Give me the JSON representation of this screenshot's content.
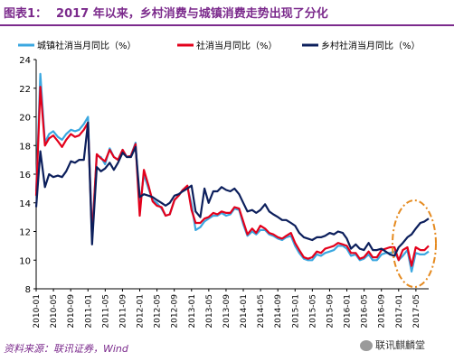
{
  "figure": {
    "label": "图表1：",
    "title": "2017 年以来，乡村消费与城镇消费走势出现了分化",
    "source": "资料来源：联讯证券，Wind",
    "watermark": "联讯麒麟堂"
  },
  "colors": {
    "urban": "#3aa7e0",
    "total": "#e3001b",
    "rural": "#0c1f5c",
    "annotation": "#e58a1f",
    "title": "#7b2a8c"
  },
  "chart_data": {
    "type": "line",
    "x_tick_labels": [
      "2010-01",
      "2010-05",
      "2010-09",
      "2011-01",
      "2011-05",
      "2011-09",
      "2012-01",
      "2012-05",
      "2012-09",
      "2013-01",
      "2013-05",
      "2013-09",
      "2014-01",
      "2014-05",
      "2014-09",
      "2015-01",
      "2015-05",
      "2015-09",
      "2016-01",
      "2016-05",
      "2016-09",
      "2017-01",
      "2017-05"
    ],
    "ylim": [
      8,
      24
    ],
    "yticks": [
      8,
      10,
      12,
      14,
      16,
      18,
      20,
      22,
      24
    ],
    "legend_position": "top",
    "series": [
      {
        "name": "城镇社消当月同比（%）",
        "color_key": "urban",
        "values": [
          [
            2010.0,
            14.8
          ],
          [
            2010.08,
            23.0
          ],
          [
            2010.17,
            18.2
          ],
          [
            2010.25,
            18.8
          ],
          [
            2010.33,
            19.0
          ],
          [
            2010.42,
            18.6
          ],
          [
            2010.5,
            18.4
          ],
          [
            2010.58,
            18.8
          ],
          [
            2010.67,
            19.1
          ],
          [
            2010.75,
            19.0
          ],
          [
            2010.83,
            19.1
          ],
          [
            2010.92,
            19.5
          ],
          [
            2011.0,
            20.0
          ],
          [
            2011.08,
            11.8
          ],
          [
            2011.17,
            17.3
          ],
          [
            2011.25,
            17.2
          ],
          [
            2011.33,
            16.7
          ],
          [
            2011.42,
            17.8
          ],
          [
            2011.5,
            17.2
          ],
          [
            2011.58,
            17.0
          ],
          [
            2011.67,
            17.7
          ],
          [
            2011.75,
            17.2
          ],
          [
            2011.83,
            17.3
          ],
          [
            2011.92,
            18.2
          ],
          [
            2012.0,
            13.6
          ],
          [
            2012.08,
            16.0
          ],
          [
            2012.17,
            15.0
          ],
          [
            2012.25,
            14.2
          ],
          [
            2012.33,
            14.0
          ],
          [
            2012.42,
            13.6
          ],
          [
            2012.5,
            13.1
          ],
          [
            2012.58,
            13.2
          ],
          [
            2012.67,
            14.2
          ],
          [
            2012.75,
            14.5
          ],
          [
            2012.83,
            14.9
          ],
          [
            2012.92,
            15.1
          ],
          [
            2013.0,
            13.9
          ],
          [
            2013.08,
            12.1
          ],
          [
            2013.17,
            12.3
          ],
          [
            2013.25,
            12.7
          ],
          [
            2013.33,
            12.9
          ],
          [
            2013.42,
            13.1
          ],
          [
            2013.5,
            13.1
          ],
          [
            2013.58,
            13.3
          ],
          [
            2013.67,
            13.1
          ],
          [
            2013.75,
            13.2
          ],
          [
            2013.83,
            13.6
          ],
          [
            2013.92,
            13.5
          ],
          [
            2014.0,
            12.5
          ],
          [
            2014.08,
            11.7
          ],
          [
            2014.17,
            12.0
          ],
          [
            2014.25,
            11.8
          ],
          [
            2014.33,
            12.1
          ],
          [
            2014.42,
            12.1
          ],
          [
            2014.5,
            11.8
          ],
          [
            2014.58,
            11.7
          ],
          [
            2014.67,
            11.5
          ],
          [
            2014.75,
            11.4
          ],
          [
            2014.83,
            11.6
          ],
          [
            2014.92,
            11.7
          ],
          [
            2015.0,
            11.0
          ],
          [
            2015.08,
            10.5
          ],
          [
            2015.17,
            10.1
          ],
          [
            2015.25,
            10.0
          ],
          [
            2015.33,
            10.0
          ],
          [
            2015.42,
            10.4
          ],
          [
            2015.5,
            10.3
          ],
          [
            2015.58,
            10.5
          ],
          [
            2015.67,
            10.6
          ],
          [
            2015.75,
            10.7
          ],
          [
            2015.83,
            11.0
          ],
          [
            2015.92,
            11.0
          ],
          [
            2016.0,
            10.8
          ],
          [
            2016.08,
            10.3
          ],
          [
            2016.17,
            10.4
          ],
          [
            2016.25,
            10.0
          ],
          [
            2016.33,
            10.1
          ],
          [
            2016.42,
            10.4
          ],
          [
            2016.5,
            10.0
          ],
          [
            2016.58,
            10.0
          ],
          [
            2016.67,
            10.4
          ],
          [
            2016.75,
            10.5
          ],
          [
            2016.83,
            10.5
          ],
          [
            2016.92,
            10.6
          ],
          [
            2017.0,
            10.0
          ],
          [
            2017.08,
            10.3
          ],
          [
            2017.17,
            10.7
          ],
          [
            2017.25,
            9.2
          ],
          [
            2017.33,
            10.5
          ],
          [
            2017.42,
            10.4
          ],
          [
            2017.5,
            10.4
          ],
          [
            2017.58,
            10.6
          ]
        ]
      },
      {
        "name": "社消当月同比（%）",
        "color_key": "total",
        "values": [
          [
            2010.0,
            14.5
          ],
          [
            2010.08,
            22.1
          ],
          [
            2010.17,
            18.0
          ],
          [
            2010.25,
            18.5
          ],
          [
            2010.33,
            18.7
          ],
          [
            2010.42,
            18.3
          ],
          [
            2010.5,
            17.9
          ],
          [
            2010.58,
            18.4
          ],
          [
            2010.67,
            18.8
          ],
          [
            2010.75,
            18.6
          ],
          [
            2010.83,
            18.7
          ],
          [
            2010.92,
            19.1
          ],
          [
            2011.0,
            19.6
          ],
          [
            2011.08,
            11.6
          ],
          [
            2011.17,
            17.4
          ],
          [
            2011.25,
            17.1
          ],
          [
            2011.33,
            16.9
          ],
          [
            2011.42,
            17.7
          ],
          [
            2011.5,
            17.2
          ],
          [
            2011.58,
            17.0
          ],
          [
            2011.67,
            17.7
          ],
          [
            2011.75,
            17.2
          ],
          [
            2011.83,
            17.3
          ],
          [
            2011.92,
            18.1
          ],
          [
            2012.0,
            13.1
          ],
          [
            2012.08,
            16.3
          ],
          [
            2012.17,
            15.2
          ],
          [
            2012.25,
            14.1
          ],
          [
            2012.33,
            13.8
          ],
          [
            2012.42,
            13.7
          ],
          [
            2012.5,
            13.1
          ],
          [
            2012.58,
            13.2
          ],
          [
            2012.67,
            14.2
          ],
          [
            2012.75,
            14.5
          ],
          [
            2012.83,
            14.9
          ],
          [
            2012.92,
            15.2
          ],
          [
            2013.0,
            13.5
          ],
          [
            2013.08,
            12.6
          ],
          [
            2013.17,
            12.6
          ],
          [
            2013.25,
            12.9
          ],
          [
            2013.33,
            13.0
          ],
          [
            2013.42,
            13.3
          ],
          [
            2013.5,
            13.2
          ],
          [
            2013.58,
            13.4
          ],
          [
            2013.67,
            13.3
          ],
          [
            2013.75,
            13.3
          ],
          [
            2013.83,
            13.7
          ],
          [
            2013.92,
            13.6
          ],
          [
            2014.0,
            12.7
          ],
          [
            2014.08,
            11.8
          ],
          [
            2014.17,
            12.2
          ],
          [
            2014.25,
            11.9
          ],
          [
            2014.33,
            12.4
          ],
          [
            2014.42,
            12.2
          ],
          [
            2014.5,
            11.9
          ],
          [
            2014.58,
            11.8
          ],
          [
            2014.67,
            11.6
          ],
          [
            2014.75,
            11.5
          ],
          [
            2014.83,
            11.7
          ],
          [
            2014.92,
            11.9
          ],
          [
            2015.0,
            11.2
          ],
          [
            2015.08,
            10.7
          ],
          [
            2015.17,
            10.2
          ],
          [
            2015.25,
            10.1
          ],
          [
            2015.33,
            10.2
          ],
          [
            2015.42,
            10.6
          ],
          [
            2015.5,
            10.5
          ],
          [
            2015.58,
            10.8
          ],
          [
            2015.67,
            10.9
          ],
          [
            2015.75,
            11.0
          ],
          [
            2015.83,
            11.2
          ],
          [
            2015.92,
            11.1
          ],
          [
            2016.0,
            11.0
          ],
          [
            2016.08,
            10.5
          ],
          [
            2016.17,
            10.5
          ],
          [
            2016.25,
            10.1
          ],
          [
            2016.33,
            10.2
          ],
          [
            2016.42,
            10.6
          ],
          [
            2016.5,
            10.2
          ],
          [
            2016.58,
            10.2
          ],
          [
            2016.67,
            10.7
          ],
          [
            2016.75,
            10.8
          ],
          [
            2016.83,
            10.9
          ],
          [
            2016.92,
            10.9
          ],
          [
            2017.0,
            10.0
          ],
          [
            2017.08,
            10.7
          ],
          [
            2017.17,
            10.9
          ],
          [
            2017.25,
            9.6
          ],
          [
            2017.33,
            10.9
          ],
          [
            2017.42,
            10.7
          ],
          [
            2017.5,
            10.7
          ],
          [
            2017.58,
            11.0
          ]
        ]
      },
      {
        "name": "乡村社消当月同比（%）",
        "color_key": "rural",
        "values": [
          [
            2010.0,
            13.7
          ],
          [
            2010.08,
            17.6
          ],
          [
            2010.17,
            15.1
          ],
          [
            2010.25,
            16.0
          ],
          [
            2010.33,
            15.8
          ],
          [
            2010.42,
            15.9
          ],
          [
            2010.5,
            15.8
          ],
          [
            2010.58,
            16.2
          ],
          [
            2010.67,
            16.9
          ],
          [
            2010.75,
            16.8
          ],
          [
            2010.83,
            17.0
          ],
          [
            2010.92,
            17.0
          ],
          [
            2011.0,
            19.6
          ],
          [
            2011.08,
            11.1
          ],
          [
            2011.17,
            16.5
          ],
          [
            2011.25,
            16.2
          ],
          [
            2011.33,
            16.4
          ],
          [
            2011.42,
            16.8
          ],
          [
            2011.5,
            16.3
          ],
          [
            2011.58,
            16.8
          ],
          [
            2011.67,
            17.5
          ],
          [
            2011.75,
            17.2
          ],
          [
            2011.83,
            17.2
          ],
          [
            2011.92,
            17.9
          ],
          [
            2012.0,
            14.4
          ],
          [
            2012.08,
            14.6
          ],
          [
            2012.17,
            14.5
          ],
          [
            2012.25,
            14.4
          ],
          [
            2012.33,
            14.2
          ],
          [
            2012.42,
            14.0
          ],
          [
            2012.5,
            13.8
          ],
          [
            2012.58,
            14.0
          ],
          [
            2012.67,
            14.5
          ],
          [
            2012.75,
            14.6
          ],
          [
            2012.83,
            14.8
          ],
          [
            2012.92,
            15.0
          ],
          [
            2013.0,
            15.2
          ],
          [
            2013.08,
            13.4
          ],
          [
            2013.17,
            13.0
          ],
          [
            2013.25,
            15.0
          ],
          [
            2013.33,
            14.0
          ],
          [
            2013.42,
            14.8
          ],
          [
            2013.5,
            14.8
          ],
          [
            2013.58,
            15.1
          ],
          [
            2013.67,
            14.9
          ],
          [
            2013.75,
            14.8
          ],
          [
            2013.83,
            15.0
          ],
          [
            2013.92,
            14.6
          ],
          [
            2014.0,
            14.0
          ],
          [
            2014.08,
            13.4
          ],
          [
            2014.17,
            13.5
          ],
          [
            2014.25,
            13.3
          ],
          [
            2014.33,
            13.5
          ],
          [
            2014.42,
            13.9
          ],
          [
            2014.5,
            13.4
          ],
          [
            2014.58,
            13.2
          ],
          [
            2014.67,
            13.0
          ],
          [
            2014.75,
            12.8
          ],
          [
            2014.83,
            12.8
          ],
          [
            2014.92,
            12.6
          ],
          [
            2015.0,
            12.4
          ],
          [
            2015.08,
            11.9
          ],
          [
            2015.17,
            11.6
          ],
          [
            2015.25,
            11.5
          ],
          [
            2015.33,
            11.4
          ],
          [
            2015.42,
            11.6
          ],
          [
            2015.5,
            11.6
          ],
          [
            2015.58,
            11.7
          ],
          [
            2015.67,
            11.9
          ],
          [
            2015.75,
            11.8
          ],
          [
            2015.83,
            12.0
          ],
          [
            2015.92,
            11.9
          ],
          [
            2016.0,
            11.5
          ],
          [
            2016.08,
            10.8
          ],
          [
            2016.17,
            11.1
          ],
          [
            2016.25,
            10.8
          ],
          [
            2016.33,
            10.7
          ],
          [
            2016.42,
            11.2
          ],
          [
            2016.5,
            10.7
          ],
          [
            2016.58,
            10.7
          ],
          [
            2016.67,
            10.8
          ],
          [
            2016.75,
            10.6
          ],
          [
            2016.83,
            10.4
          ],
          [
            2016.92,
            10.3
          ],
          [
            2017.0,
            10.9
          ],
          [
            2017.08,
            11.2
          ],
          [
            2017.17,
            11.6
          ],
          [
            2017.25,
            11.8
          ],
          [
            2017.33,
            12.2
          ],
          [
            2017.42,
            12.6
          ],
          [
            2017.5,
            12.7
          ],
          [
            2017.58,
            12.9
          ]
        ]
      }
    ]
  }
}
